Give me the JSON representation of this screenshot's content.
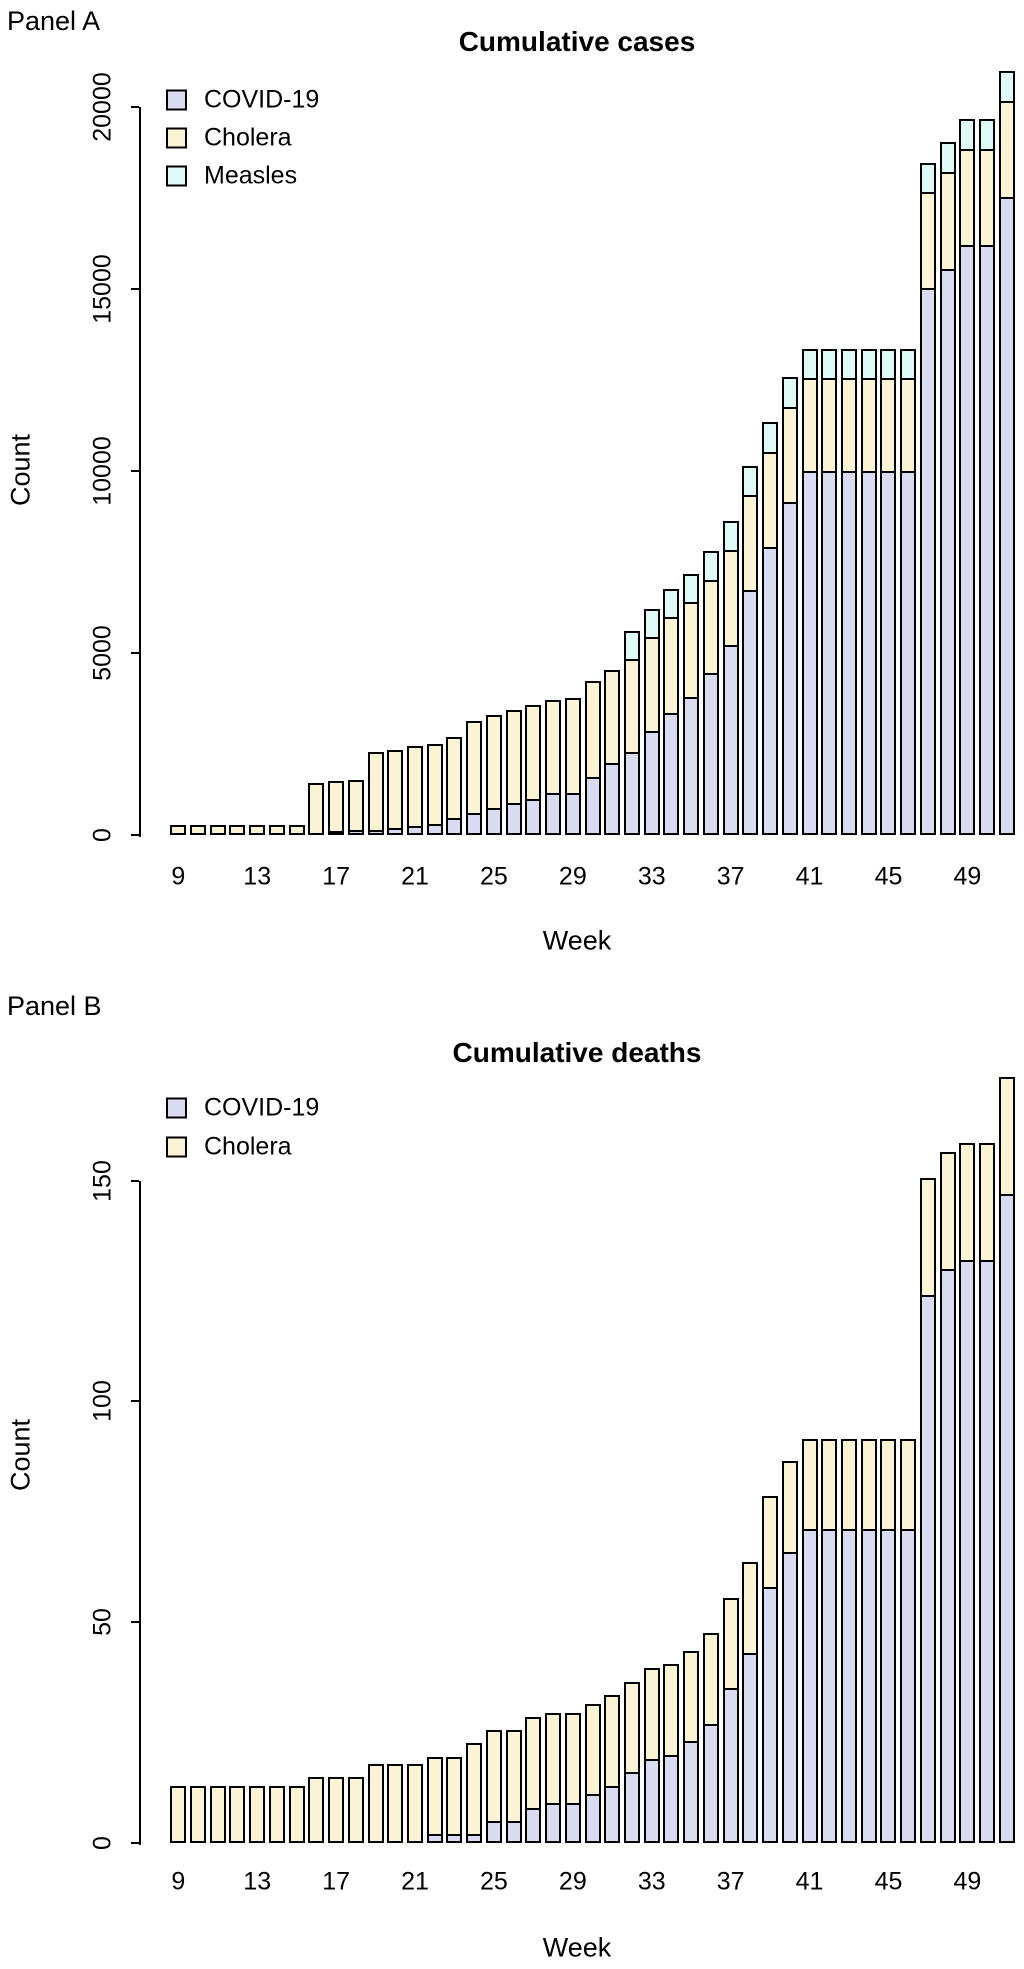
{
  "page_background": "#ffffff",
  "chart_data": [
    {
      "type": "bar",
      "stacked": true,
      "panel_label": "Panel A",
      "title": "Cumulative cases",
      "xlabel": "Week",
      "ylabel": "Count",
      "x": [
        9,
        10,
        11,
        12,
        13,
        14,
        15,
        16,
        17,
        18,
        19,
        20,
        21,
        22,
        23,
        24,
        25,
        26,
        27,
        28,
        29,
        30,
        31,
        32,
        33,
        34,
        35,
        36,
        37,
        38,
        39,
        40,
        41,
        42,
        43,
        44,
        45,
        46,
        47,
        48,
        49,
        50,
        51
      ],
      "x_tick_labels": [
        9,
        13,
        17,
        21,
        25,
        29,
        33,
        37,
        41,
        45,
        49
      ],
      "y_ticks": [
        0,
        5000,
        10000,
        15000,
        20000
      ],
      "ylim": [
        0,
        21200
      ],
      "grid": false,
      "legend_position": "top-left",
      "series": [
        {
          "name": "COVID-19",
          "color": "#D9DBF1",
          "values": [
            0,
            0,
            0,
            0,
            0,
            0,
            0,
            0,
            60,
            140,
            150,
            190,
            250,
            300,
            460,
            600,
            740,
            880,
            990,
            1150,
            1150,
            1600,
            1980,
            2280,
            2850,
            3350,
            3790,
            4450,
            5220,
            6730,
            7920,
            9150,
            10000,
            10000,
            10000,
            10000,
            10000,
            10000,
            15030,
            15570,
            16210,
            16210,
            17540
          ]
        },
        {
          "name": "Cholera",
          "color": "#FBF3D5",
          "values": [
            270,
            270,
            270,
            270,
            270,
            270,
            270,
            1430,
            1430,
            1430,
            2200,
            2200,
            2250,
            2250,
            2280,
            2600,
            2610,
            2610,
            2630,
            2620,
            2670,
            2690,
            2610,
            2610,
            2650,
            2690,
            2660,
            2610,
            2660,
            2660,
            2660,
            2660,
            2610,
            2610,
            2610,
            2610,
            2610,
            2610,
            2690,
            2700,
            2690,
            2690,
            2700
          ]
        },
        {
          "name": "Measles",
          "color": "#DFF9F7",
          "values": [
            0,
            0,
            0,
            0,
            0,
            0,
            0,
            0,
            0,
            0,
            0,
            0,
            0,
            0,
            0,
            0,
            0,
            0,
            0,
            0,
            0,
            0,
            0,
            825,
            825,
            825,
            825,
            850,
            855,
            850,
            870,
            880,
            850,
            850,
            850,
            850,
            850,
            850,
            870,
            900,
            880,
            880,
            870
          ]
        }
      ]
    },
    {
      "type": "bar",
      "stacked": true,
      "panel_label": "Panel B",
      "title": "Cumulative deaths",
      "xlabel": "Week",
      "ylabel": "Count",
      "x": [
        9,
        10,
        11,
        12,
        13,
        14,
        15,
        16,
        17,
        18,
        19,
        20,
        21,
        22,
        23,
        24,
        25,
        26,
        27,
        28,
        29,
        30,
        31,
        32,
        33,
        34,
        35,
        36,
        37,
        38,
        39,
        40,
        41,
        42,
        43,
        44,
        45,
        46,
        47,
        48,
        49,
        50,
        51
      ],
      "x_tick_labels": [
        9,
        13,
        17,
        21,
        25,
        29,
        33,
        37,
        41,
        45,
        49
      ],
      "y_ticks": [
        0,
        50,
        100,
        150
      ],
      "ylim": [
        0,
        175
      ],
      "grid": false,
      "legend_position": "top-left",
      "series": [
        {
          "name": "COVID-19",
          "color": "#D9DBF1",
          "values": [
            0,
            0,
            0,
            0,
            0,
            0,
            0,
            0,
            0,
            0,
            0,
            0,
            0,
            2,
            2,
            2,
            5,
            5,
            8,
            9,
            9,
            11,
            13,
            16,
            19,
            20,
            23,
            27,
            35,
            43,
            58,
            66,
            71,
            71,
            71,
            71,
            71,
            71,
            124,
            130,
            132,
            132,
            147
          ]
        },
        {
          "name": "Cholera",
          "color": "#FBF3D5",
          "values": [
            13,
            13,
            13,
            13,
            13,
            13,
            13,
            15,
            15,
            15,
            18,
            18,
            18,
            18,
            18,
            21,
            21,
            21,
            21,
            21,
            21,
            21,
            21,
            21,
            21,
            21,
            21,
            21,
            21,
            21,
            21,
            21,
            21,
            21,
            21,
            21,
            21,
            21,
            27,
            27,
            27,
            27,
            27
          ]
        }
      ]
    }
  ]
}
